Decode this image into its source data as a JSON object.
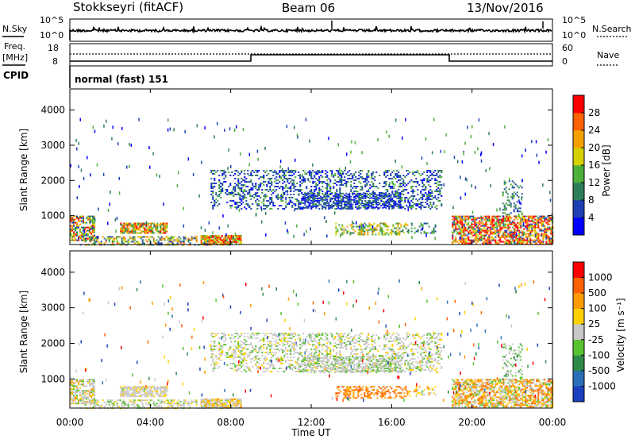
{
  "header": {
    "station": "Stokkseyri (fitACF)",
    "beam": "Beam 06",
    "date": "13/Nov/2016"
  },
  "summary": {
    "nsky_label": "N.Sky",
    "nsearch_label": "N.Search",
    "nsky_ticks": [
      "10^5",
      "10^0"
    ],
    "nsearch_ticks": [
      "10^5",
      "10^0"
    ],
    "freq_label_1": "Freq.",
    "freq_label_2": "[MHz]",
    "freq_ticks": [
      "18",
      "8"
    ],
    "nave_label": "Nave",
    "nave_ticks": [
      "60",
      "0"
    ],
    "cpid_label": "CPID",
    "cpid_text": "normal (fast) 151"
  },
  "chart_data": [
    {
      "type": "heatmap",
      "name": "power",
      "ylabel": "Slant Range [km]",
      "yticks": [
        "4000",
        "3000",
        "2000",
        "1000"
      ],
      "colorbar_label": "Power [dB]",
      "colorbar_ticks": [
        "28",
        "24",
        "20",
        "16",
        "12",
        "8",
        "4"
      ],
      "colors": [
        "#0000ff",
        "#1e40b4",
        "#2e7d5a",
        "#4caf3a",
        "#d4d000",
        "#f5a000",
        "#ff6000",
        "#ff0000"
      ]
    },
    {
      "type": "heatmap",
      "name": "velocity",
      "ylabel": "Slant Range [km]",
      "yticks": [
        "4000",
        "3000",
        "2000",
        "1000"
      ],
      "colorbar_label": "Velocity [m s⁻¹]",
      "colorbar_ticks": [
        "1000",
        "500",
        "100",
        "25",
        "-25",
        "-100",
        "-500",
        "-1000"
      ],
      "colors": [
        "#1a3fbf",
        "#2a6fb8",
        "#2f8a4a",
        "#58c230",
        "#c8c8c8",
        "#ffd000",
        "#ff9a00",
        "#ff6000",
        "#ff0000"
      ]
    }
  ],
  "xaxis": {
    "label": "Time UT",
    "ticks": [
      "00:00",
      "04:00",
      "08:00",
      "12:00",
      "16:00",
      "20:00",
      "00:00"
    ]
  }
}
